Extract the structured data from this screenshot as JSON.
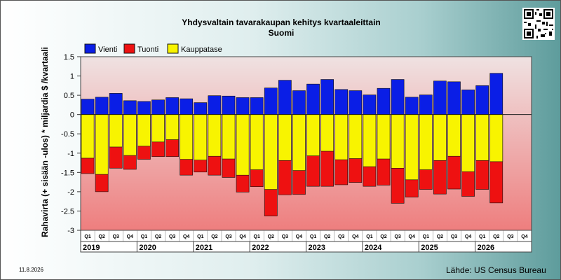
{
  "title": "Yhdysvaltain tavarakaupan kehitys kvartaaleittain",
  "subtitle": "Suomi",
  "date": "11.8.2026",
  "source": "Lähde: US Census Bureau",
  "colors": {
    "export": "#0a1ee6",
    "import": "#ee1111",
    "balance": "#f8f400"
  },
  "chart_data": {
    "type": "bar",
    "title": "Yhdysvaltain tavarakaupan kehitys kvartaaleittain",
    "subtitle": "Suomi",
    "ylabel": "Rahavirta (+ sisään -ulos)  * miljardia $ /kvartaali",
    "ylim": [
      -3,
      1.5
    ],
    "yticks": [
      "1.5",
      "1",
      "0.5",
      "0",
      "-0.5",
      "-1",
      "-1.5",
      "-2",
      "-2.5",
      "-3"
    ],
    "legend": [
      "Vienti",
      "Tuonti",
      "Kauppatase"
    ],
    "legend_position": "top-left",
    "quarters": [
      "Q1",
      "Q2",
      "Q3",
      "Q4",
      "Q1",
      "Q2",
      "Q3",
      "Q4",
      "Q1",
      "Q2",
      "Q3",
      "Q4",
      "Q1",
      "Q2",
      "Q3",
      "Q4",
      "Q1",
      "Q2",
      "Q3",
      "Q4",
      "Q1",
      "Q2",
      "Q3",
      "Q4",
      "Q1",
      "Q2",
      "Q3",
      "Q4",
      "Q1",
      "Q2",
      "Q3",
      "Q4"
    ],
    "years": [
      "2019",
      "2020",
      "2021",
      "2022",
      "2023",
      "2024",
      "2025",
      "2026"
    ],
    "series": [
      {
        "name": "Vienti",
        "values": [
          0.4,
          0.45,
          0.55,
          0.36,
          0.34,
          0.38,
          0.44,
          0.41,
          0.31,
          0.49,
          0.48,
          0.44,
          0.44,
          0.69,
          0.89,
          0.62,
          0.79,
          0.91,
          0.65,
          0.62,
          0.51,
          0.68,
          0.91,
          0.45,
          0.51,
          0.87,
          0.85,
          0.64,
          0.75,
          1.07,
          null,
          null
        ]
      },
      {
        "name": "Tuonti",
        "values": [
          -1.53,
          -2.0,
          -1.39,
          -1.42,
          -1.16,
          -1.09,
          -1.09,
          -1.57,
          -1.49,
          -1.57,
          -1.63,
          -2.01,
          -1.87,
          -2.63,
          -2.08,
          -2.07,
          -1.86,
          -1.86,
          -1.82,
          -1.76,
          -1.86,
          -1.83,
          -2.3,
          -2.14,
          -1.94,
          -2.06,
          -1.93,
          -2.12,
          -1.94,
          -2.29,
          null,
          null
        ]
      },
      {
        "name": "Kauppatase",
        "values": [
          -1.13,
          -1.55,
          -0.84,
          -1.06,
          -0.82,
          -0.71,
          -0.65,
          -1.16,
          -1.18,
          -1.08,
          -1.15,
          -1.57,
          -1.43,
          -1.94,
          -1.19,
          -1.45,
          -1.07,
          -0.95,
          -1.17,
          -1.14,
          -1.35,
          -1.15,
          -1.39,
          -1.69,
          -1.43,
          -1.19,
          -1.08,
          -1.48,
          -1.19,
          -1.22,
          null,
          null
        ]
      }
    ]
  }
}
